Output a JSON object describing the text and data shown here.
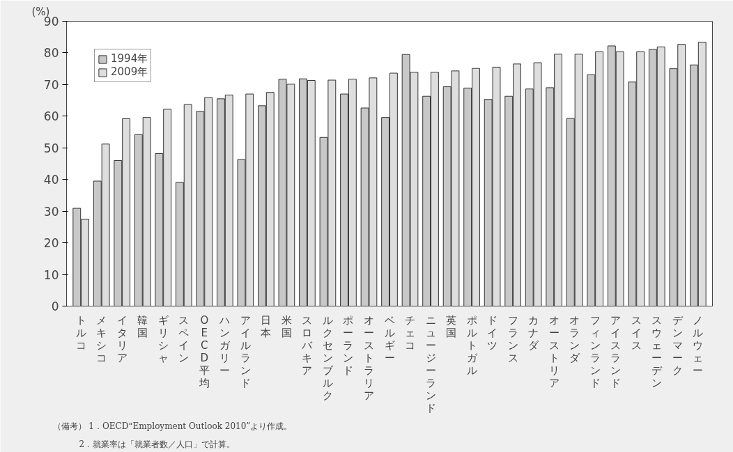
{
  "chart_data": {
    "type": "bar",
    "ylabel": "(%)",
    "categories": [
      "トルコ",
      "メキシコ",
      "イタリア",
      "韓国",
      "ギリシャ",
      "スペイン",
      "OECD平均",
      "ハンガリー",
      "アイルランド",
      "日本",
      "米国",
      "スロバキア",
      "ルクセンブルク",
      "ポーランド",
      "オーストラリア",
      "ベルギー",
      "チェコ",
      "ニュージーランド",
      "英国",
      "ポルトガル",
      "ドイツ",
      "フランス",
      "カナダ",
      "オーストリア",
      "オランダ",
      "フィンランド",
      "アイスランド",
      "スイス",
      "スウェーデン",
      "デンマーク",
      "ノルウェー"
    ],
    "series": [
      {
        "name": "1994年",
        "color": "#c8c8c8",
        "values": [
          30.9,
          39.5,
          46.0,
          54.2,
          48.2,
          39.1,
          61.5,
          65.5,
          46.3,
          63.3,
          71.7,
          71.8,
          53.3,
          67.0,
          62.6,
          59.6,
          79.5,
          66.3,
          69.3,
          68.9,
          65.3,
          66.3,
          68.6,
          69.0,
          59.3,
          73.1,
          82.2,
          70.8,
          81.1,
          75.0,
          76.2
        ]
      },
      {
        "name": "2009年",
        "color": "#dedede",
        "values": [
          27.4,
          51.2,
          59.2,
          59.6,
          62.2,
          63.7,
          65.9,
          66.7,
          67.0,
          67.5,
          70.1,
          71.3,
          71.4,
          71.7,
          72.1,
          73.6,
          73.9,
          73.9,
          74.3,
          75.1,
          75.5,
          76.5,
          76.9,
          79.6,
          79.6,
          80.4,
          80.4,
          80.4,
          81.9,
          82.7,
          83.4
        ]
      }
    ],
    "ylim": [
      0,
      90
    ],
    "yticks": [
      0,
      10,
      20,
      30,
      40,
      50,
      60,
      70,
      80,
      90
    ],
    "grid": false,
    "legend": "top left",
    "annotations": [
      "（備考） 1．OECD“Employment Outlook 2010”より作成。",
      "2．就業率は「就業者数／人口」で計算。"
    ]
  }
}
